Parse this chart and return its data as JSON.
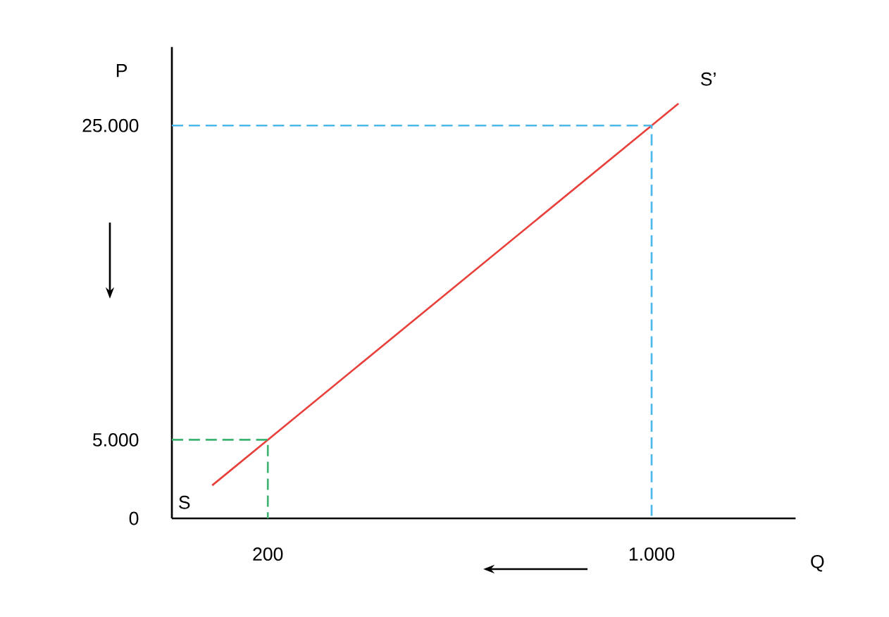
{
  "chart_data": {
    "type": "line",
    "xlabel": "Q",
    "ylabel": "P",
    "xlim": [
      0,
      1300
    ],
    "ylim": [
      0,
      30000
    ],
    "xticks": [
      200,
      {
        "value": 1000,
        "label": "1.000"
      }
    ],
    "yticks": [
      {
        "value": 0,
        "label": "0"
      },
      {
        "value": 5000,
        "label": "5.000"
      },
      {
        "value": 25000,
        "label": "25.000"
      }
    ],
    "series": [
      {
        "color": "#e8413c",
        "x": [
          84,
          200,
          1000,
          1056
        ],
        "values": [
          2100,
          5000,
          25000,
          26400
        ]
      },
      {
        "color": "#3cb371",
        "line_style": "dashed",
        "x": [
          0,
          200,
          200
        ],
        "values": [
          5000,
          5000,
          0
        ]
      },
      {
        "color": "#4ab8e8",
        "line_style": "dashed",
        "x": [
          0,
          1000,
          1000
        ],
        "values": [
          25000,
          25000,
          0
        ]
      }
    ],
    "annotations": [
      "S",
      "S’"
    ]
  }
}
